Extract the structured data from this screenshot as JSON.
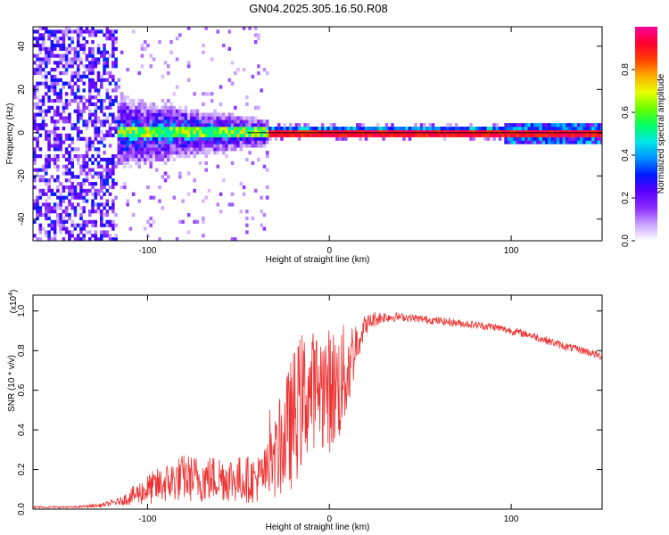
{
  "title": "GN04.2025.305.16.50.R08",
  "chart_data": [
    {
      "type": "heatmap",
      "xlabel": "Height of straight line (km)",
      "ylabel": "Frequency (Hz)",
      "xlim": [
        -163,
        150
      ],
      "ylim": [
        -50,
        49
      ],
      "xticks": [
        -100,
        0,
        100
      ],
      "xtick_labels": [
        "-100",
        "0",
        "100"
      ],
      "yticks": [
        -40,
        -20,
        0,
        20,
        40
      ],
      "ytick_labels": [
        "-40",
        "-20",
        "0",
        "20",
        "40"
      ],
      "colorbar": {
        "label": "Normalized spectral amplitude",
        "range": [
          0,
          1
        ],
        "ticks": [
          0.0,
          0.2,
          0.4,
          0.6,
          0.8
        ],
        "tick_labels": [
          "0.0",
          "0.2",
          "0.4",
          "0.6",
          "0.8"
        ],
        "colors": [
          "#ffffff",
          "#c7a3ff",
          "#8b2bff",
          "#5a00ff",
          "#0018ff",
          "#0090ff",
          "#00e6e6",
          "#00ff66",
          "#66ff00",
          "#e6ff00",
          "#ffb000",
          "#ff4000",
          "#ff0030",
          "#ff0099"
        ]
      },
      "regions": [
        {
          "name": "broadband-noise",
          "x_range": [
            -163,
            -120
          ],
          "f_range": [
            -50,
            49
          ],
          "amplitude": 0.2
        },
        {
          "name": "broadening-band",
          "x_range": [
            -125,
            -35
          ],
          "f_range": [
            -18,
            18
          ],
          "amplitude": 0.45
        },
        {
          "name": "narrow-band",
          "x_range": [
            -45,
            150
          ],
          "f_range": [
            -2,
            2
          ],
          "amplitude": 0.95
        }
      ]
    },
    {
      "type": "line",
      "xlabel": "Height of straight line (km)",
      "ylabel": "SNR (10 * v/v)",
      "scale_label": "(x10",
      "scale_exp": "4",
      "scale_close": ")",
      "xlim": [
        -163,
        150
      ],
      "ylim": [
        0,
        1.08
      ],
      "xticks": [
        -100,
        0,
        100
      ],
      "xtick_labels": [
        "-100",
        "0",
        "100"
      ],
      "yticks": [
        0.0,
        0.2,
        0.4,
        0.6,
        0.8,
        1.0
      ],
      "ytick_labels": [
        "0.0",
        "0.2",
        "0.4",
        "0.6",
        "0.8",
        "1.0"
      ],
      "series": [
        {
          "name": "SNR",
          "color": "#ee3333",
          "x": [
            -163,
            -140,
            -125,
            -115,
            -100,
            -90,
            -80,
            -70,
            -60,
            -50,
            -40,
            -35,
            -30,
            -25,
            -20,
            -15,
            -10,
            -5,
            0,
            5,
            10,
            15,
            20,
            25,
            30,
            40,
            50,
            60,
            70,
            80,
            90,
            100,
            110,
            120,
            130,
            140,
            150
          ],
          "y": [
            0.01,
            0.01,
            0.02,
            0.04,
            0.1,
            0.13,
            0.16,
            0.15,
            0.16,
            0.15,
            0.15,
            0.18,
            0.25,
            0.35,
            0.45,
            0.55,
            0.6,
            0.62,
            0.6,
            0.62,
            0.7,
            0.85,
            0.93,
            0.96,
            0.97,
            0.97,
            0.96,
            0.95,
            0.94,
            0.93,
            0.92,
            0.9,
            0.88,
            0.85,
            0.82,
            0.8,
            0.77
          ],
          "noise_amplitude": [
            0.005,
            0.005,
            0.01,
            0.02,
            0.08,
            0.1,
            0.12,
            0.12,
            0.12,
            0.12,
            0.12,
            0.14,
            0.2,
            0.28,
            0.35,
            0.35,
            0.3,
            0.3,
            0.32,
            0.3,
            0.25,
            0.12,
            0.05,
            0.04,
            0.03,
            0.02,
            0.02,
            0.02,
            0.02,
            0.02,
            0.02,
            0.02,
            0.02,
            0.02,
            0.02,
            0.02,
            0.02
          ]
        }
      ]
    }
  ]
}
